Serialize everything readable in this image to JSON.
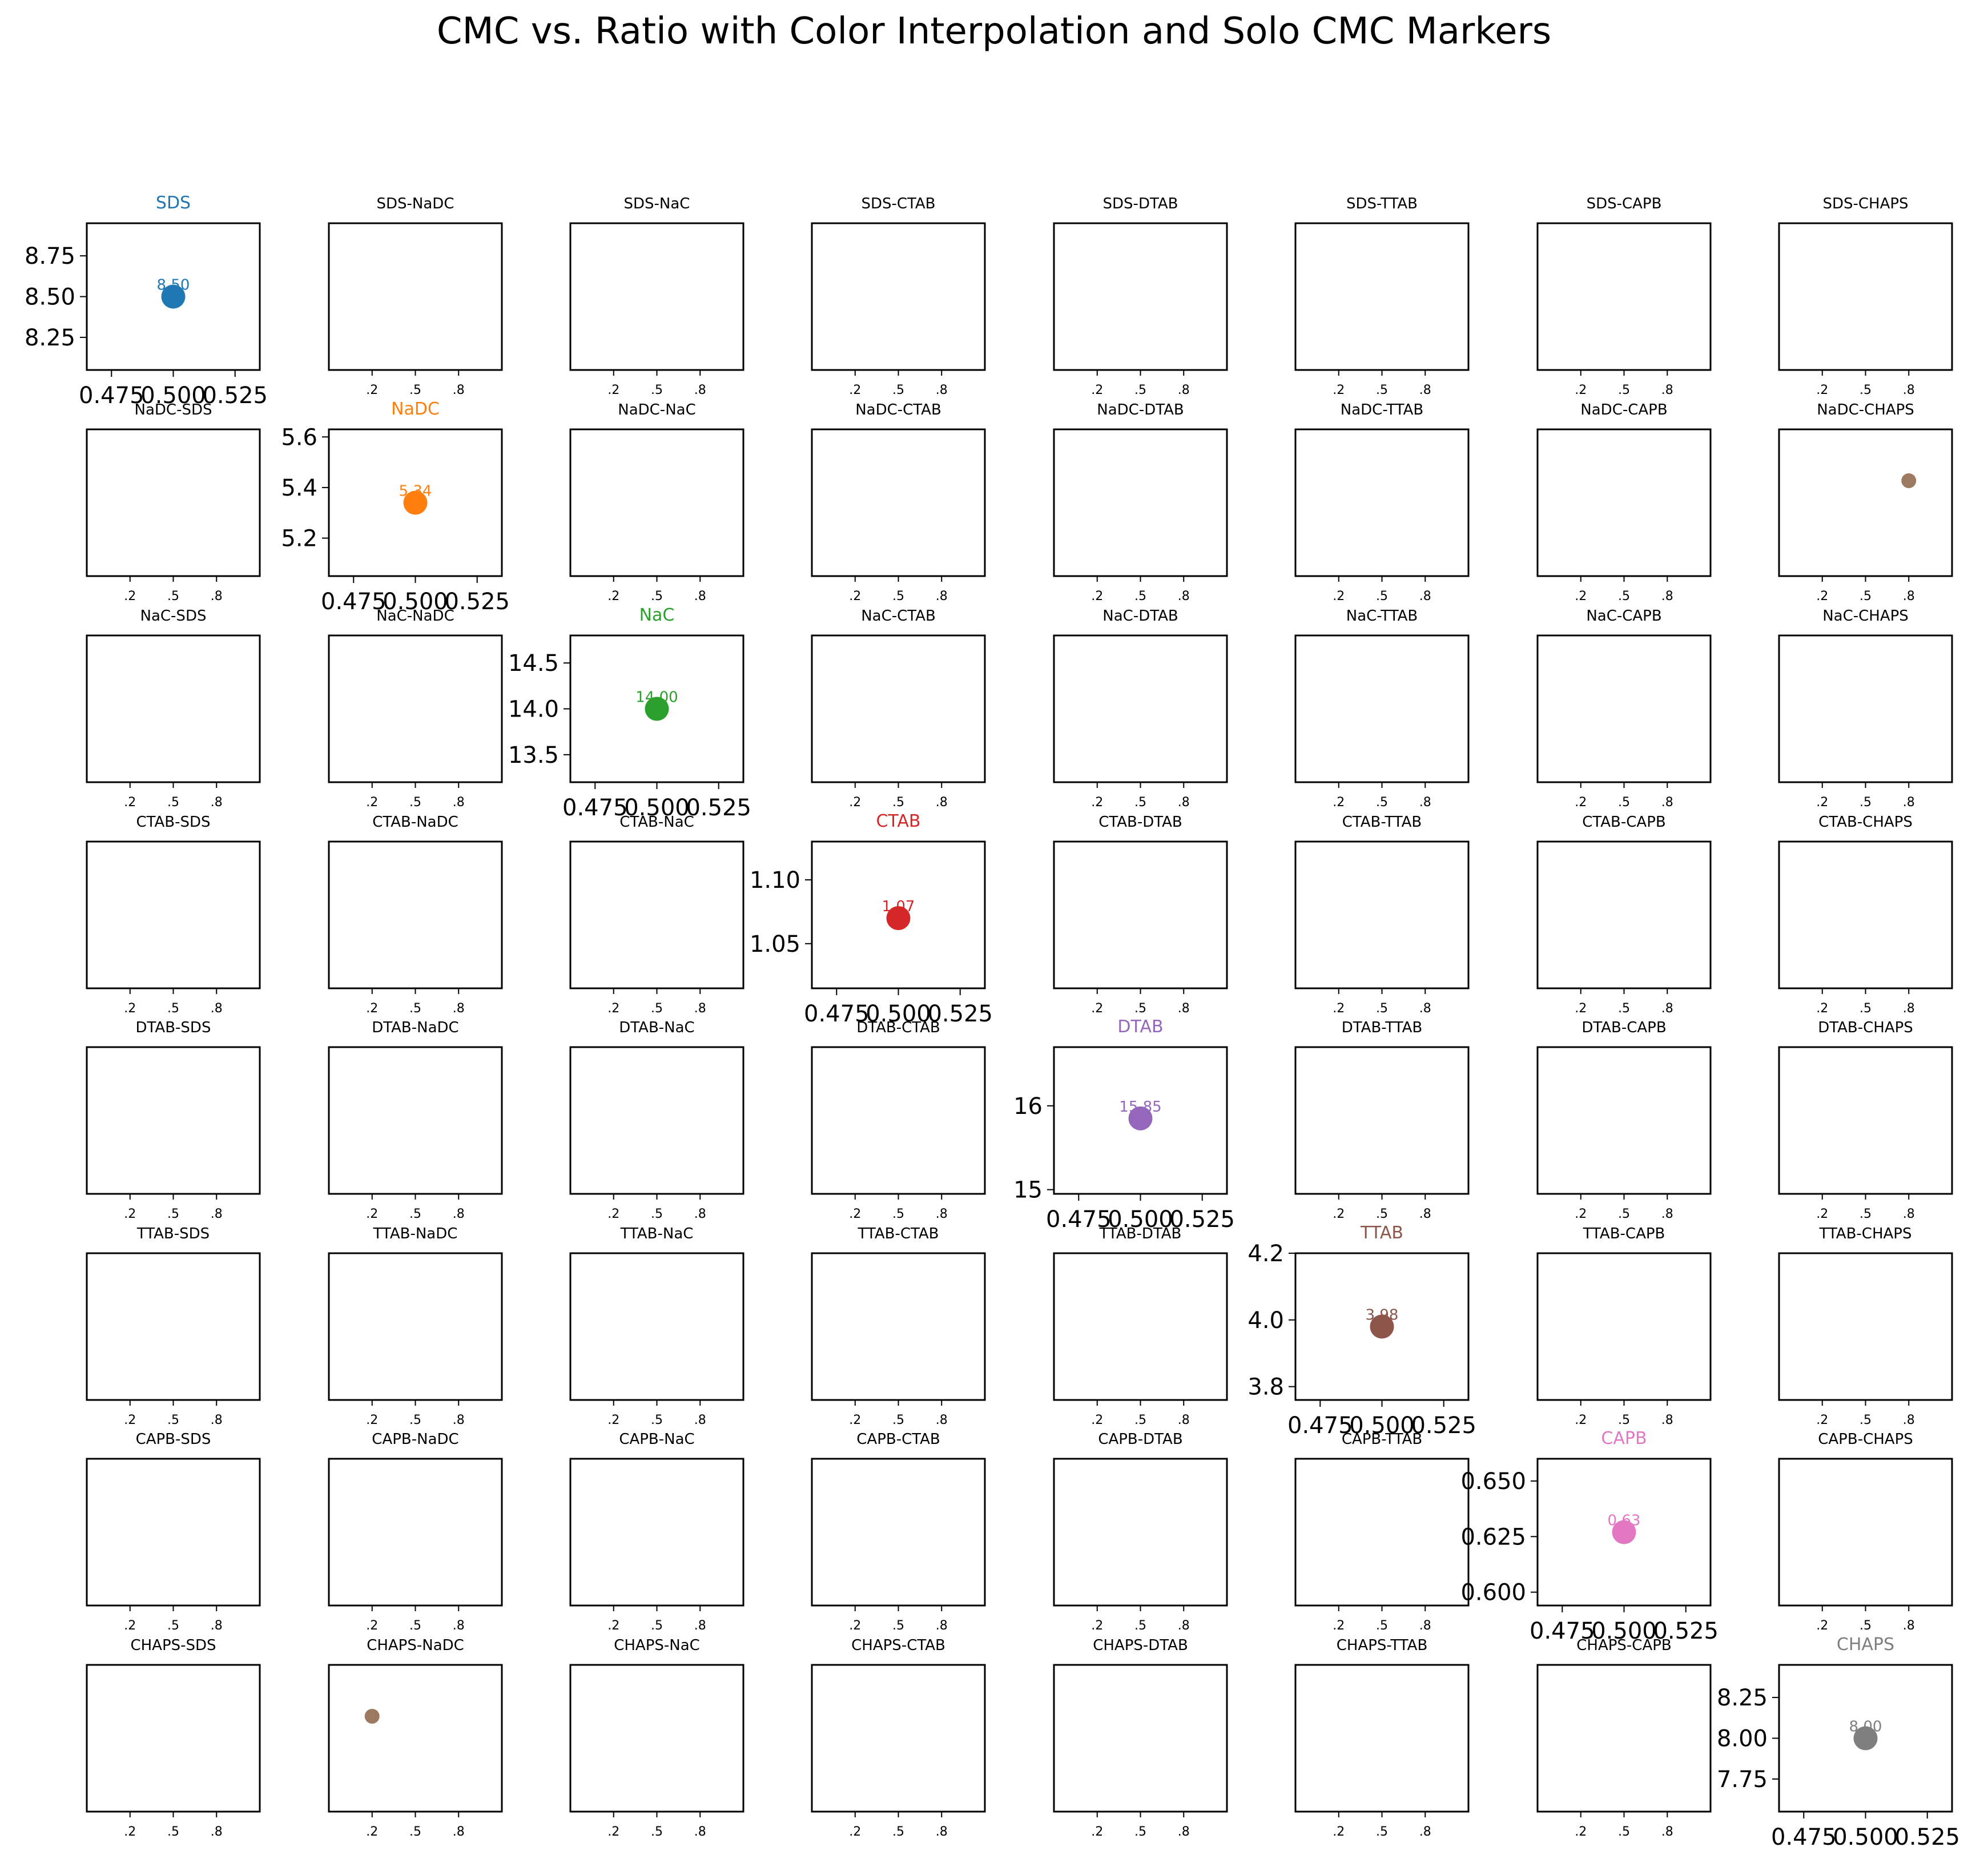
{
  "title": "CMC vs. Ratio with Color Interpolation and Solo CMC Markers",
  "chart_data": {
    "type": "scatter",
    "layout": "8x8 grid of subplots; diagonal = solo CMC marker, off-diagonal = binary mixtures",
    "surfactants": [
      {
        "name": "SDS",
        "color": "#1f77b4",
        "cmc": 8.5,
        "label": "8.50",
        "yticks": [
          "8.25",
          "8.50",
          "8.75"
        ],
        "ylim": [
          8.05,
          8.95
        ]
      },
      {
        "name": "NaDC",
        "color": "#ff7f0e",
        "cmc": 5.34,
        "label": "5.34",
        "yticks": [
          "5.2",
          "5.4",
          "5.6"
        ],
        "ylim": [
          5.05,
          5.63
        ]
      },
      {
        "name": "NaC",
        "color": "#2ca02c",
        "cmc": 14.0,
        "label": "14.00",
        "yticks": [
          "13.5",
          "14.0",
          "14.5"
        ],
        "ylim": [
          13.2,
          14.8
        ]
      },
      {
        "name": "CTAB",
        "color": "#d62728",
        "cmc": 1.07,
        "label": "1.07",
        "yticks": [
          "1.05",
          "1.10"
        ],
        "ylim": [
          1.015,
          1.13
        ]
      },
      {
        "name": "DTAB",
        "color": "#9467bd",
        "cmc": 15.85,
        "label": "15.85",
        "yticks": [
          "15",
          "16"
        ],
        "ylim": [
          14.95,
          16.7
        ]
      },
      {
        "name": "TTAB",
        "color": "#8c564b",
        "cmc": 3.98,
        "label": "3.98",
        "yticks": [
          "3.8",
          "4.0",
          "4.2"
        ],
        "ylim": [
          3.76,
          4.2
        ]
      },
      {
        "name": "CAPB",
        "color": "#e377c2",
        "cmc": 0.627,
        "label": "0.63",
        "yticks": [
          "0.600",
          "0.625",
          "0.650"
        ],
        "ylim": [
          0.594,
          0.66
        ]
      },
      {
        "name": "CHAPS",
        "color": "#7f7f7f",
        "cmc": 8.0,
        "label": "8.00",
        "yticks": [
          "7.75",
          "8.00",
          "8.25"
        ],
        "ylim": [
          7.55,
          8.45
        ]
      }
    ],
    "diag_xticks": [
      "0.475",
      "0.500",
      "0.525"
    ],
    "diag_xlim": [
      0.465,
      0.535
    ],
    "diag_x": 0.5,
    "pair_xticks": [
      ".2",
      ".5",
      ".8"
    ],
    "pair_xticks_values": [
      0.2,
      0.5,
      0.8
    ],
    "pair_xlim": [
      -0.1,
      1.1
    ],
    "pair_points": [
      {
        "row": "NaDC",
        "col": "CHAPS",
        "x": 0.8,
        "y": 0.65,
        "color": "#9c7a62"
      },
      {
        "row": "CHAPS",
        "col": "NaDC",
        "x": 0.2,
        "y": 0.65,
        "color": "#9c7a62"
      }
    ],
    "pair_ylim": [
      0,
      1
    ]
  }
}
